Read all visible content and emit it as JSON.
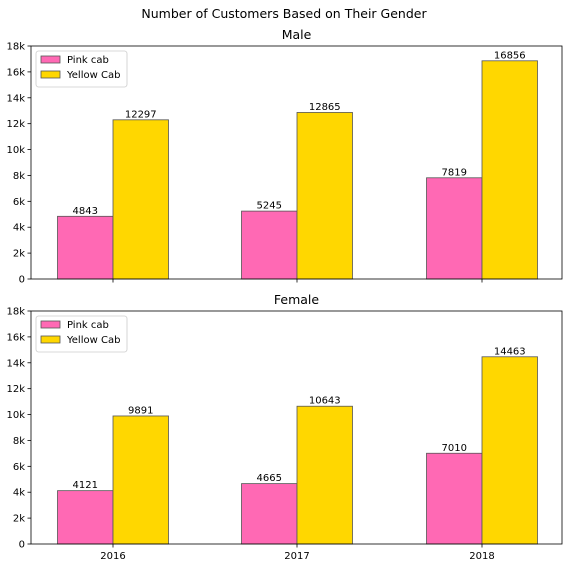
{
  "suptitle": "Number of Customers Based on Their Gender",
  "colors": {
    "pink": "#ff69b4",
    "yellow": "#ffd700",
    "edge": "#555555"
  },
  "chart_data": [
    {
      "type": "bar",
      "title": "Male",
      "categories": [
        "2016",
        "2017",
        "2018"
      ],
      "show_xticklabels": false,
      "series": [
        {
          "name": "Pink cab",
          "values": [
            4843,
            5245,
            7819
          ],
          "data_labels": [
            "4843",
            "5245",
            "7819"
          ],
          "color": "#ff69b4"
        },
        {
          "name": "Yellow Cab",
          "values": [
            12297,
            12865,
            16856
          ],
          "data_labels": [
            "12297",
            "12865",
            "16856"
          ],
          "color": "#ffd700"
        }
      ],
      "ylim": [
        0,
        18000
      ],
      "yticks": [
        0,
        2000,
        4000,
        6000,
        8000,
        10000,
        12000,
        14000,
        16000,
        18000
      ],
      "ytick_labels": [
        "0",
        "2k",
        "4k",
        "6k",
        "8k",
        "10k",
        "12k",
        "14k",
        "16k",
        "18k"
      ],
      "legend": "top-left",
      "grid": false
    },
    {
      "type": "bar",
      "title": "Female",
      "categories": [
        "2016",
        "2017",
        "2018"
      ],
      "show_xticklabels": true,
      "series": [
        {
          "name": "Pink cab",
          "values": [
            4121,
            4665,
            7010
          ],
          "data_labels": [
            "4121",
            "4665",
            "7010"
          ],
          "color": "#ff69b4"
        },
        {
          "name": "Yellow Cab",
          "values": [
            9891,
            10643,
            14463
          ],
          "data_labels": [
            "9891",
            "10643",
            "14463"
          ],
          "color": "#ffd700"
        }
      ],
      "ylim": [
        0,
        18000
      ],
      "yticks": [
        0,
        2000,
        4000,
        6000,
        8000,
        10000,
        12000,
        14000,
        16000,
        18000
      ],
      "ytick_labels": [
        "0",
        "2k",
        "4k",
        "6k",
        "8k",
        "10k",
        "12k",
        "14k",
        "16k",
        "18k"
      ],
      "legend": "top-left",
      "grid": false
    }
  ]
}
